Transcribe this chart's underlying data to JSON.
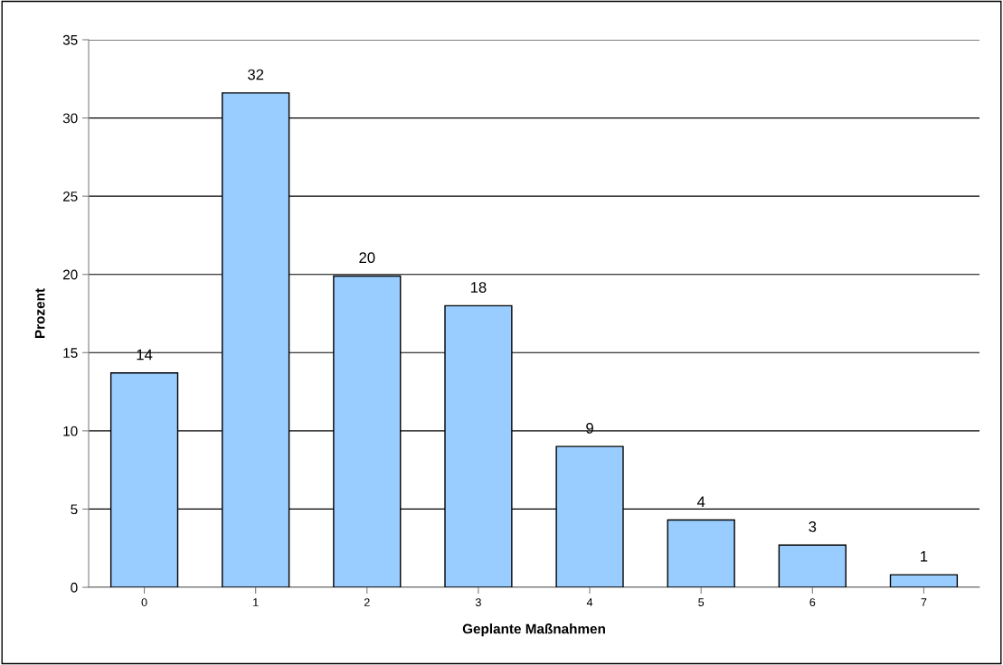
{
  "chart_data": {
    "type": "bar",
    "xlabel": "Geplante Maßnahmen",
    "ylabel": "Prozent",
    "categories": [
      "0",
      "1",
      "2",
      "3",
      "4",
      "5",
      "6",
      "7"
    ],
    "values": [
      13.7,
      31.6,
      19.9,
      18.0,
      9.0,
      4.3,
      2.7,
      0.8
    ],
    "value_labels": [
      "14",
      "32",
      "20",
      "18",
      "9",
      "4",
      "3",
      "1"
    ],
    "color": "#99ccff",
    "ylim": [
      0,
      35
    ],
    "yticks": [
      0,
      5,
      10,
      15,
      20,
      25,
      30,
      35
    ],
    "grid": "y",
    "legend": false
  }
}
